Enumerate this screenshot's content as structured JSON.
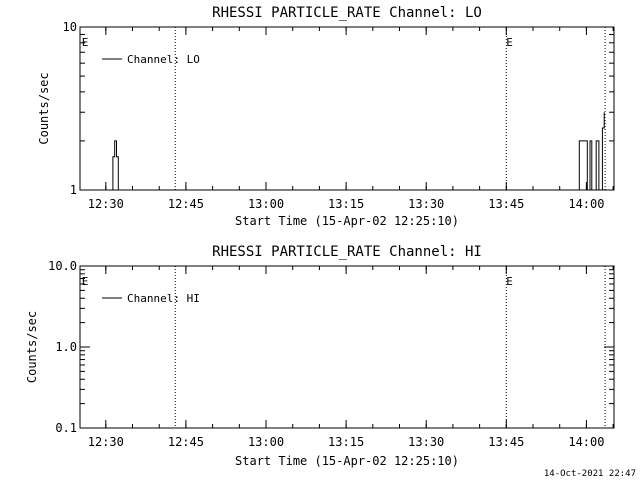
{
  "time_axis": {
    "min": "12:25:10",
    "max": "14:05:10",
    "ticks": [
      "12:30",
      "12:45",
      "13:00",
      "13:15",
      "13:30",
      "13:45",
      "14:00"
    ]
  },
  "chart_data": [
    {
      "type": "line",
      "title": "RHESSI PARTICLE_RATE Channel: LO",
      "xlabel": "Start Time (15-Apr-02 12:25:10)",
      "ylabel": "Counts/sec",
      "yscale": "log",
      "ylim": [
        1,
        10
      ],
      "ytick_labels": [
        "1",
        "10"
      ],
      "legend": "top-left",
      "series": [
        {
          "name": "Channel: LO",
          "x": [
            "12:25:10",
            "12:31:00",
            "12:31:20",
            "12:31:40",
            "12:32:00",
            "12:32:20",
            "13:58:00",
            "13:58:40",
            "13:59:30",
            "14:00:10",
            "14:00:40",
            "14:01:00",
            "14:01:50",
            "14:02:20",
            "14:02:50",
            "14:03:00",
            "14:03:20"
          ],
          "y": [
            1,
            1,
            1.6,
            2,
            1.6,
            1,
            1,
            2,
            2,
            1,
            2,
            1,
            2,
            1,
            1,
            2.4,
            3
          ]
        }
      ],
      "event_marks": [
        {
          "time": "12:25:30",
          "label": "E"
        },
        {
          "time": "13:45:00",
          "label": "E"
        }
      ],
      "vertical_lines": [
        "12:43:00",
        "13:45:00",
        "14:03:30"
      ]
    },
    {
      "type": "line",
      "title": "RHESSI PARTICLE_RATE Channel: HI",
      "xlabel": "Start Time (15-Apr-02 12:25:10)",
      "ylabel": "Counts/sec",
      "yscale": "log",
      "ylim": [
        0.1,
        10
      ],
      "ytick_labels": [
        "0.1",
        "1.0",
        "10.0"
      ],
      "legend": "top-left",
      "series": [
        {
          "name": "Channel: HI",
          "x": [],
          "y": []
        }
      ],
      "event_marks": [
        {
          "time": "12:25:30",
          "label": "E"
        },
        {
          "time": "13:45:00",
          "label": "E"
        }
      ],
      "vertical_lines": [
        "12:43:00",
        "13:45:00",
        "14:03:30"
      ]
    }
  ],
  "footer": {
    "timestamp": "14-Oct-2021 22:47"
  }
}
